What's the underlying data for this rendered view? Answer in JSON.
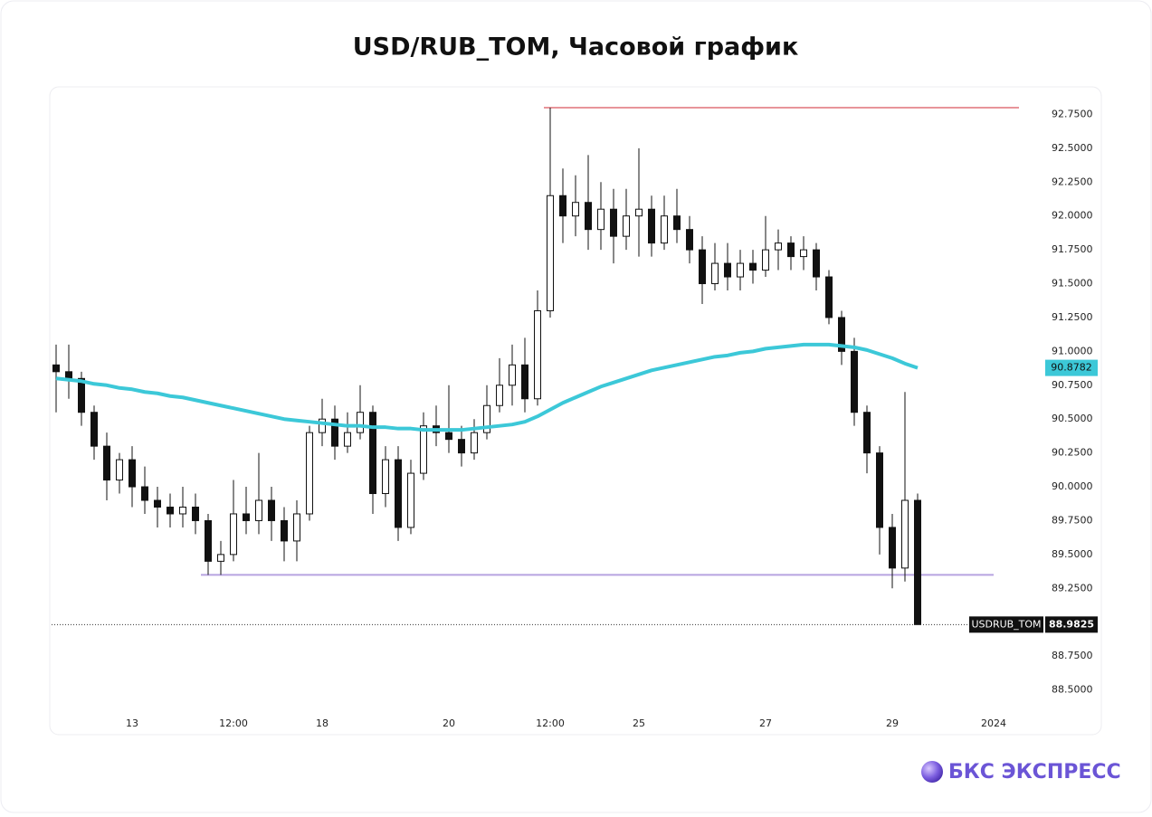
{
  "chart_data": {
    "type": "candlestick",
    "title": "USD/RUB_TOM, Часовой график",
    "symbol": "USDRUB_TOM",
    "brand": "БКС ЭКСПРЕСС",
    "categories": [
      null,
      null,
      null,
      null,
      null,
      null,
      "13",
      null,
      null,
      null,
      null,
      null,
      null,
      null,
      "12:00",
      null,
      null,
      null,
      null,
      null,
      null,
      "18",
      null,
      null,
      null,
      null,
      null,
      null,
      null,
      null,
      null,
      "20",
      null,
      null,
      null,
      null,
      null,
      null,
      null,
      "12:00",
      null,
      null,
      null,
      null,
      null,
      null,
      "25",
      null,
      null,
      null,
      null,
      null,
      null,
      null,
      null,
      null,
      "27",
      null,
      null,
      null,
      null,
      null,
      null,
      null,
      null,
      null,
      "29",
      null,
      null,
      null,
      null,
      null,
      null,
      null,
      "2024",
      null
    ],
    "open": [
      90.9,
      90.85,
      90.8,
      90.55,
      90.3,
      90.05,
      90.2,
      90.0,
      89.9,
      89.85,
      89.8,
      89.85,
      89.75,
      89.45,
      89.5,
      89.8,
      89.75,
      89.9,
      89.75,
      89.6,
      89.8,
      90.4,
      90.5,
      90.3,
      90.4,
      90.55,
      89.95,
      90.2,
      89.7,
      90.1,
      90.45,
      90.4,
      90.35,
      90.25,
      90.4,
      90.6,
      90.75,
      90.9,
      90.65,
      91.3,
      92.15,
      92.0,
      92.1,
      91.9,
      92.05,
      91.85,
      92.0,
      92.05,
      91.8,
      92.0,
      91.9,
      91.75,
      91.5,
      91.65,
      91.55,
      91.65,
      91.6,
      91.75,
      91.8,
      91.7,
      91.75,
      91.55,
      91.25,
      91.0,
      90.55,
      90.25,
      89.7,
      89.4,
      89.9,
      null,
      null,
      null,
      null,
      null,
      null,
      null
    ],
    "high": [
      91.05,
      91.05,
      90.85,
      90.6,
      90.4,
      90.25,
      90.3,
      90.15,
      90.0,
      89.95,
      90.0,
      89.95,
      89.8,
      89.6,
      90.05,
      90.0,
      90.25,
      90.0,
      89.85,
      89.9,
      90.45,
      90.65,
      90.6,
      90.55,
      90.75,
      90.6,
      90.3,
      90.3,
      90.2,
      90.55,
      90.6,
      90.75,
      90.45,
      90.5,
      90.75,
      90.95,
      91.05,
      91.1,
      91.45,
      92.8,
      92.35,
      92.3,
      92.45,
      92.25,
      92.2,
      92.2,
      92.5,
      92.15,
      92.15,
      92.2,
      92.0,
      91.85,
      91.8,
      91.8,
      91.75,
      91.75,
      92.0,
      91.9,
      91.85,
      91.85,
      91.8,
      91.6,
      91.3,
      91.1,
      90.6,
      90.3,
      89.8,
      90.7,
      89.95,
      null,
      null,
      null,
      null,
      null,
      null,
      null
    ],
    "low": [
      90.55,
      90.65,
      90.45,
      90.2,
      89.9,
      89.95,
      89.85,
      89.8,
      89.7,
      89.7,
      89.7,
      89.65,
      89.35,
      89.35,
      89.45,
      89.65,
      89.65,
      89.6,
      89.45,
      89.45,
      89.75,
      90.3,
      90.2,
      90.25,
      90.35,
      89.8,
      89.85,
      89.6,
      89.65,
      90.05,
      90.3,
      90.25,
      90.15,
      90.2,
      90.35,
      90.55,
      90.6,
      90.55,
      90.6,
      91.25,
      91.8,
      91.85,
      91.75,
      91.75,
      91.65,
      91.75,
      91.7,
      91.7,
      91.75,
      91.8,
      91.65,
      91.35,
      91.45,
      91.45,
      91.45,
      91.5,
      91.55,
      91.6,
      91.6,
      91.6,
      91.45,
      91.2,
      90.9,
      90.45,
      90.1,
      89.5,
      89.25,
      89.3,
      88.9825,
      null,
      null,
      null,
      null,
      null,
      null,
      null
    ],
    "close": [
      90.85,
      90.8,
      90.55,
      90.3,
      90.05,
      90.2,
      90.0,
      89.9,
      89.85,
      89.8,
      89.85,
      89.75,
      89.45,
      89.5,
      89.8,
      89.75,
      89.9,
      89.75,
      89.6,
      89.8,
      90.4,
      90.5,
      90.3,
      90.4,
      90.55,
      89.95,
      90.2,
      89.7,
      90.1,
      90.45,
      90.4,
      90.35,
      90.25,
      90.4,
      90.6,
      90.75,
      90.9,
      90.65,
      91.3,
      92.15,
      92.0,
      92.1,
      91.9,
      92.05,
      91.85,
      92.0,
      92.05,
      91.8,
      92.0,
      91.9,
      91.75,
      91.5,
      91.65,
      91.55,
      91.65,
      91.6,
      91.75,
      91.8,
      91.7,
      91.75,
      91.55,
      91.25,
      91.0,
      90.55,
      90.25,
      89.7,
      89.4,
      89.9,
      88.9825,
      null,
      null,
      null,
      null,
      null,
      null,
      null
    ],
    "up_color": "#ffffff",
    "down_color": "#111111",
    "ma": {
      "color": "#3cc8d8",
      "values": [
        90.8,
        90.79,
        90.78,
        90.76,
        90.75,
        90.73,
        90.72,
        90.7,
        90.69,
        90.67,
        90.66,
        90.64,
        90.62,
        90.6,
        90.58,
        90.56,
        90.54,
        90.52,
        90.5,
        90.49,
        90.48,
        90.47,
        90.46,
        90.45,
        90.45,
        90.44,
        90.44,
        90.43,
        90.43,
        90.42,
        90.42,
        90.42,
        90.42,
        90.43,
        90.44,
        90.45,
        90.46,
        90.48,
        90.52,
        90.57,
        90.62,
        90.66,
        90.7,
        90.74,
        90.77,
        90.8,
        90.83,
        90.86,
        90.88,
        90.9,
        90.92,
        90.94,
        90.96,
        90.97,
        90.99,
        91.0,
        91.02,
        91.03,
        91.04,
        91.05,
        91.05,
        91.05,
        91.04,
        91.03,
        91.01,
        90.98,
        90.95,
        90.91,
        90.8782,
        null,
        null,
        null,
        null,
        null,
        null,
        null
      ]
    },
    "levels": [
      {
        "value": 92.8,
        "color": "#e8959a"
      },
      {
        "value": 89.35,
        "color": "#b7a3e0"
      }
    ],
    "ylim": [
      88.35,
      92.94
    ],
    "yticks": [
      {
        "value": 92.75,
        "label": "92.7500"
      },
      {
        "value": 92.5,
        "label": "92.5000"
      },
      {
        "value": 92.25,
        "label": "92.2500"
      },
      {
        "value": 92,
        "label": "92.0000"
      },
      {
        "value": 91.75,
        "label": "91.7500"
      },
      {
        "value": 91.5,
        "label": "91.5000"
      },
      {
        "value": 91.25,
        "label": "91.2500"
      },
      {
        "value": 91,
        "label": "91.0000"
      },
      {
        "value": 90.75,
        "label": "90.7500"
      },
      {
        "value": 90.5,
        "label": "90.5000"
      },
      {
        "value": 90.25,
        "label": "90.2500"
      },
      {
        "value": 90,
        "label": "90.0000"
      },
      {
        "value": 89.75,
        "label": "89.7500"
      },
      {
        "value": 89.5,
        "label": "89.5000"
      },
      {
        "value": 89.25,
        "label": "89.2500"
      },
      {
        "value": 88.75,
        "label": "88.7500"
      },
      {
        "value": 88.5,
        "label": "88.5000"
      }
    ]
  }
}
